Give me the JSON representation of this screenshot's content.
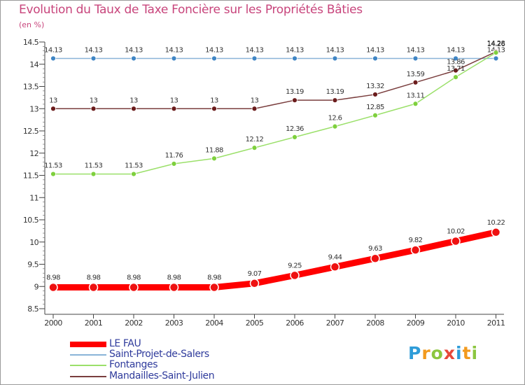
{
  "chart_data": {
    "type": "line",
    "title": "Evolution du Taux de Taxe Foncière sur les Propriétés Bâties",
    "ylabel": "(en %)",
    "xlabel": "",
    "categories": [
      "2000",
      "2001",
      "2002",
      "2003",
      "2004",
      "2005",
      "2006",
      "2007",
      "2008",
      "2009",
      "2010",
      "2011"
    ],
    "yticks": [
      "8.5",
      "9",
      "9.5",
      "10",
      "10.5",
      "11",
      "11.5",
      "12",
      "12.5",
      "13",
      "13.5",
      "14",
      "14.5"
    ],
    "ylim": [
      8.5,
      14.5
    ],
    "series": [
      {
        "name": "Saint-Projet-de-Salers",
        "color": "#8ab4d8",
        "marker": "#3f85c4",
        "values": [
          14.13,
          14.13,
          14.13,
          14.13,
          14.13,
          14.13,
          14.13,
          14.13,
          14.13,
          14.13,
          14.13,
          14.13
        ],
        "labels": [
          "14.13",
          "14.13",
          "14.13",
          "14.13",
          "14.13",
          "14.13",
          "14.13",
          "14.13",
          "14.13",
          "14.13",
          "14.13",
          "14.13"
        ]
      },
      {
        "name": "Mandailles-Saint-Julien",
        "color": "#7a3e3e",
        "marker": "#6b1c1c",
        "values": [
          13,
          13,
          13,
          13,
          13,
          13,
          13.19,
          13.19,
          13.32,
          13.59,
          13.86,
          14.28
        ],
        "labels": [
          "13",
          "13",
          "13",
          "13",
          "13",
          "13",
          "13.19",
          "13.19",
          "13.32",
          "13.59",
          "13.86",
          "14.28"
        ]
      },
      {
        "name": "Fontanges",
        "color": "#9be06a",
        "marker": "#7ed03d",
        "values": [
          11.53,
          11.53,
          11.53,
          11.76,
          11.88,
          12.12,
          12.36,
          12.6,
          12.85,
          13.11,
          13.71,
          14.26
        ],
        "labels": [
          "11.53",
          "11.53",
          "11.53",
          "11.76",
          "11.88",
          "12.12",
          "12.36",
          "12.6",
          "12.85",
          "13.11",
          "13.71",
          "14.26"
        ]
      },
      {
        "name": "LE FAU",
        "color": "#ff0000",
        "marker": "#ee1111",
        "values": [
          8.98,
          8.98,
          8.98,
          8.98,
          8.98,
          9.07,
          9.25,
          9.44,
          9.63,
          9.82,
          10.02,
          10.22
        ],
        "labels": [
          "8.98",
          "8.98",
          "8.98",
          "8.98",
          "8.98",
          "9.07",
          "9.25",
          "9.44",
          "9.63",
          "9.82",
          "10.02",
          "10.22"
        ]
      }
    ],
    "legend": [
      {
        "name": "LE FAU",
        "color": "#ff0000"
      },
      {
        "name": "Saint-Projet-de-Salers",
        "color": "#8ab4d8"
      },
      {
        "name": "Fontanges",
        "color": "#9be06a"
      },
      {
        "name": "Mandailles-Saint-Julien",
        "color": "#7a3e3e"
      }
    ],
    "legend_position": "bottom-left",
    "grid": false
  },
  "logo": {
    "letters": [
      "P",
      "r",
      "o",
      "x",
      "i",
      "t",
      "i"
    ],
    "colors": [
      "#2f9cd8",
      "#f29a1e",
      "#8cc63f",
      "#e8483a",
      "#2f9cd8",
      "#f29a1e",
      "#8cc63f"
    ]
  }
}
